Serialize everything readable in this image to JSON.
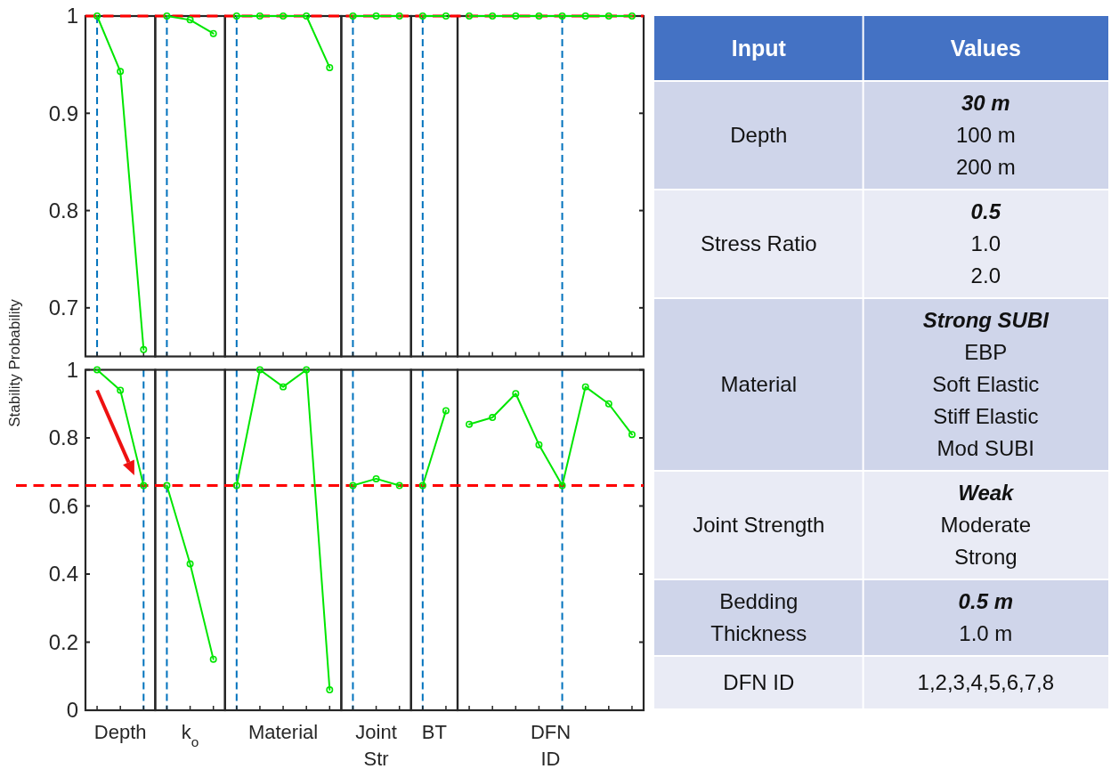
{
  "chart_data": [
    {
      "type": "line",
      "ylabel": "Stability Probability",
      "categories": [
        null,
        null,
        null,
        null,
        null,
        null,
        null,
        null,
        null,
        null,
        null,
        null,
        null,
        null,
        null,
        null,
        null,
        null,
        null,
        null,
        null,
        null,
        null,
        null
      ],
      "ylim": [
        0.65,
        1
      ],
      "yticks": [
        0.7,
        0.8,
        0.9,
        1
      ],
      "grid": "x",
      "marker": "circle",
      "line_style": "solid",
      "series": [
        {
          "color": "#00e600",
          "values": [
            1,
            0.943,
            0.657,
            null,
            null,
            null,
            null,
            null,
            null,
            null,
            null,
            null,
            null,
            null,
            null,
            null,
            null,
            null,
            null,
            null,
            null,
            null,
            null,
            null
          ]
        },
        {
          "color": "#00e600",
          "values": [
            null,
            null,
            null,
            1,
            0.996,
            0.982,
            null,
            null,
            null,
            null,
            null,
            null,
            null,
            null,
            null,
            null,
            null,
            null,
            null,
            null,
            null,
            null,
            null,
            null
          ]
        },
        {
          "color": "#00e600",
          "values": [
            null,
            null,
            null,
            null,
            null,
            null,
            1,
            1,
            1,
            1,
            0.947,
            null,
            null,
            null,
            null,
            null,
            null,
            null,
            null,
            null,
            null,
            null,
            null,
            null
          ]
        },
        {
          "color": "#00e600",
          "values": [
            null,
            null,
            null,
            null,
            null,
            null,
            null,
            null,
            null,
            null,
            null,
            1,
            1,
            1,
            null,
            null,
            null,
            null,
            null,
            null,
            null,
            null,
            null,
            null
          ]
        },
        {
          "color": "#00e600",
          "values": [
            null,
            null,
            null,
            null,
            null,
            null,
            null,
            null,
            null,
            null,
            null,
            null,
            null,
            null,
            1,
            1,
            null,
            null,
            null,
            null,
            null,
            null,
            null,
            null
          ]
        },
        {
          "color": "#00e600",
          "values": [
            null,
            null,
            null,
            null,
            null,
            null,
            null,
            null,
            null,
            null,
            null,
            null,
            null,
            null,
            null,
            null,
            1,
            1,
            1,
            1,
            1,
            1,
            1,
            1
          ]
        }
      ],
      "ref_lines": [
        {
          "axis": "y",
          "value": 1,
          "color": "#ff0000",
          "line_style": "dashed"
        }
      ]
    },
    {
      "type": "line",
      "categories": [
        null,
        null,
        null,
        null,
        null,
        null,
        null,
        null,
        null,
        null,
        null,
        null,
        null,
        null,
        null,
        null,
        null,
        null,
        null,
        null,
        null,
        null,
        null,
        null
      ],
      "ylim": [
        0,
        1
      ],
      "yticks": [
        0,
        0.2,
        0.4,
        0.6,
        0.8,
        1
      ],
      "grid": "x",
      "marker": "circle",
      "line_style": "solid",
      "annotations": [
        "Depth",
        "k$_{o}$",
        "Material",
        "Joint\nStr",
        "BT",
        "DFN\nID"
      ],
      "series": [
        {
          "color": "#00e600",
          "values": [
            1,
            0.94,
            0.66,
            null,
            null,
            null,
            null,
            null,
            null,
            null,
            null,
            null,
            null,
            null,
            null,
            null,
            null,
            null,
            null,
            null,
            null,
            null,
            null,
            null
          ]
        },
        {
          "color": "#00e600",
          "values": [
            null,
            null,
            null,
            0.66,
            0.43,
            0.15,
            null,
            null,
            null,
            null,
            null,
            null,
            null,
            null,
            null,
            null,
            null,
            null,
            null,
            null,
            null,
            null,
            null,
            null
          ]
        },
        {
          "color": "#00e600",
          "values": [
            null,
            null,
            null,
            null,
            null,
            null,
            0.66,
            1,
            0.95,
            1,
            0.06,
            null,
            null,
            null,
            null,
            null,
            null,
            null,
            null,
            null,
            null,
            null,
            null,
            null
          ]
        },
        {
          "color": "#00e600",
          "values": [
            null,
            null,
            null,
            null,
            null,
            null,
            null,
            null,
            null,
            null,
            null,
            0.66,
            0.68,
            0.66,
            null,
            null,
            null,
            null,
            null,
            null,
            null,
            null,
            null,
            null
          ]
        },
        {
          "color": "#00e600",
          "values": [
            null,
            null,
            null,
            null,
            null,
            null,
            null,
            null,
            null,
            null,
            null,
            null,
            null,
            null,
            0.66,
            0.88,
            null,
            null,
            null,
            null,
            null,
            null,
            null,
            null
          ]
        },
        {
          "color": "#00e600",
          "values": [
            null,
            null,
            null,
            null,
            null,
            null,
            null,
            null,
            null,
            null,
            null,
            null,
            null,
            null,
            null,
            null,
            0.84,
            0.86,
            0.93,
            0.78,
            0.66,
            0.95,
            0.9,
            0.81
          ]
        }
      ],
      "ref_lines": [
        {
          "axis": "y",
          "value": 0.66,
          "color": "#ff0000",
          "line_style": "dashed"
        }
      ]
    },
    {
      "type": "other",
      "categories": [
        "Input",
        "Values"
      ],
      "y_categories": [
        "Depth",
        "Stress Ratio",
        "Material",
        "Joint Strength",
        "Bedding Thickness",
        "DFN ID"
      ],
      "cell_labels": [
        [
          "30 m",
          "100 m",
          "200 m"
        ],
        [
          "0.5",
          "1.0",
          "2.0"
        ],
        [
          "Strong SUBI",
          "EBP",
          "Soft Elastic",
          "Stiff Elastic",
          "Mod SUBI"
        ],
        [
          "Weak",
          "Moderate",
          "Strong"
        ],
        [
          "0.5 m",
          "1.0 m"
        ],
        [
          "1,2,3,4,5,6,7,8"
        ]
      ]
    }
  ]
}
